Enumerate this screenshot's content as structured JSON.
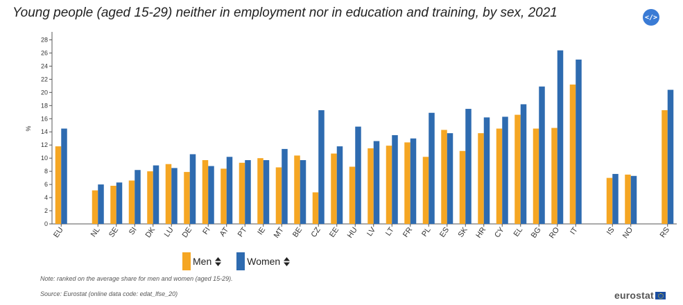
{
  "title": "Young people (aged 15-29) neither in employment nor in education and training, by sex, 2021",
  "embed_button": "</>",
  "note": "Note: ranked on the average share for men and women (aged 15-29).",
  "source": "Source: Eurostat (online data code: edat_lfse_20)",
  "logo": "eurostat",
  "colors": {
    "men": "#f5a623",
    "women": "#2e6bb0",
    "axis": "#555555"
  },
  "chart_data": {
    "type": "bar",
    "ylabel": "%",
    "ylim": [
      0,
      29
    ],
    "yticks": [
      0,
      2,
      4,
      6,
      8,
      10,
      12,
      14,
      16,
      18,
      20,
      22,
      24,
      26,
      28
    ],
    "categories": [
      "EU",
      "",
      "NL",
      "SE",
      "SI",
      "DK",
      "LU",
      "DE",
      "FI",
      "AT",
      "PT",
      "IE",
      "MT",
      "BE",
      "CZ",
      "EE",
      "HU",
      "LV",
      "LT",
      "FR",
      "PL",
      "ES",
      "SK",
      "HR",
      "CY",
      "EL",
      "BG",
      "RO",
      "IT",
      "",
      "IS",
      "NO",
      "",
      "RS"
    ],
    "series": [
      {
        "name": "Men",
        "values": [
          11.8,
          null,
          5.1,
          5.8,
          6.6,
          8.0,
          9.1,
          7.9,
          9.7,
          8.4,
          9.3,
          10.0,
          8.6,
          10.4,
          4.8,
          10.7,
          8.7,
          11.5,
          11.9,
          12.4,
          10.2,
          14.3,
          11.1,
          13.8,
          14.5,
          16.6,
          14.5,
          14.6,
          21.2,
          null,
          7.0,
          7.5,
          null,
          17.3
        ]
      },
      {
        "name": "Women",
        "values": [
          14.5,
          null,
          6.0,
          6.3,
          8.2,
          8.9,
          8.5,
          10.6,
          8.8,
          10.2,
          9.7,
          9.7,
          11.4,
          9.7,
          17.3,
          11.8,
          14.8,
          12.6,
          13.5,
          13.0,
          16.9,
          13.8,
          17.5,
          16.2,
          16.3,
          18.2,
          20.9,
          26.4,
          25.0,
          null,
          7.6,
          7.3,
          null,
          20.4
        ]
      }
    ]
  },
  "legend": [
    {
      "label": "Men",
      "color": "#f5a623"
    },
    {
      "label": "Women",
      "color": "#2e6bb0"
    }
  ]
}
